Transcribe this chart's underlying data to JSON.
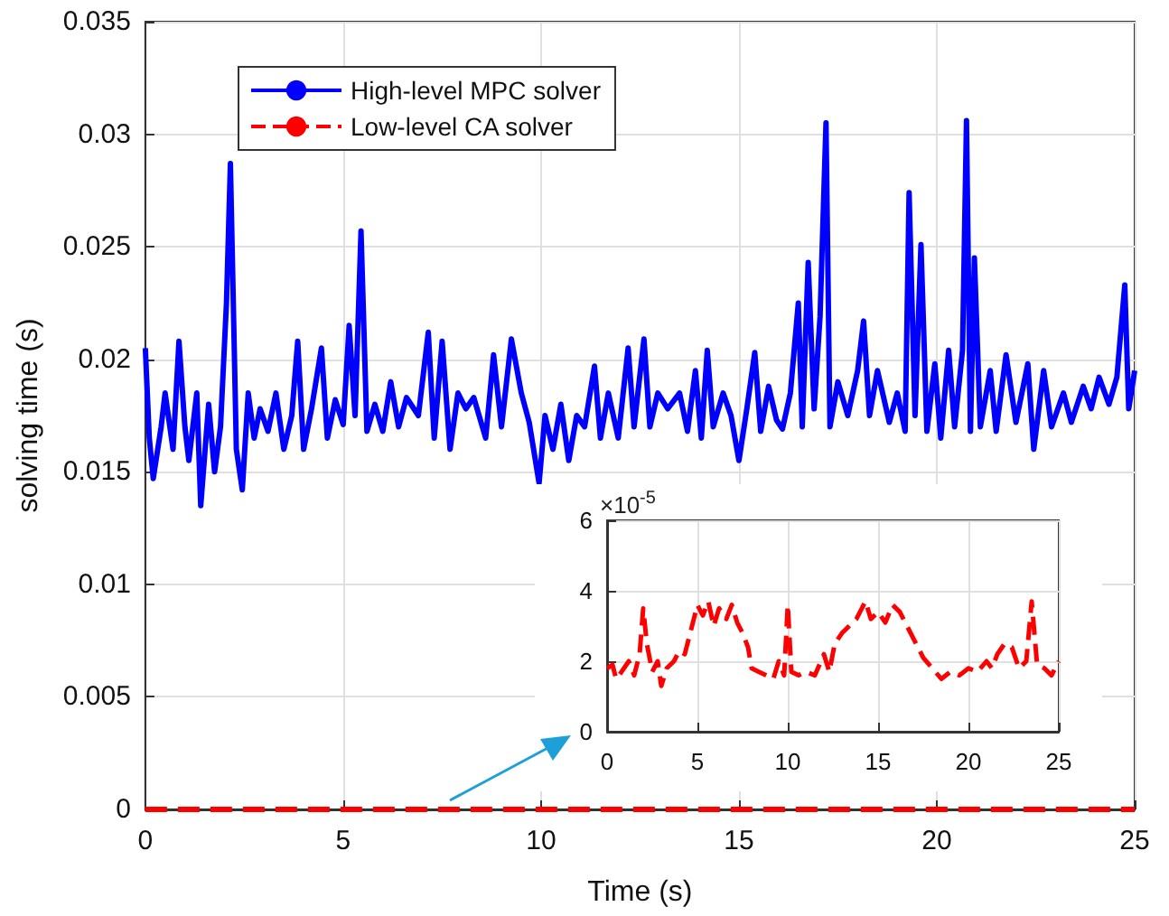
{
  "chart_data": [
    {
      "type": "line",
      "xlabel": "Time (s)",
      "ylabel": "solving time (s)",
      "xlim": [
        0,
        25
      ],
      "xticks": [
        0,
        5,
        10,
        15,
        20,
        25
      ],
      "ylim": [
        0,
        0.035
      ],
      "yticks": [
        0,
        0.005,
        0.01,
        0.015,
        0.02,
        0.025,
        0.03,
        0.035
      ],
      "grid": true,
      "legend": "top left",
      "marker": "none",
      "series": [
        {
          "name": "High-level MPC solver",
          "color": "#0000ff",
          "line_style": "solid",
          "x": [
            0,
            0.1,
            0.2,
            0.4,
            0.5,
            0.7,
            0.85,
            1.0,
            1.1,
            1.3,
            1.4,
            1.6,
            1.75,
            1.9,
            2.05,
            2.15,
            2.3,
            2.45,
            2.6,
            2.75,
            2.9,
            3.1,
            3.3,
            3.5,
            3.7,
            3.85,
            4.0,
            4.2,
            4.45,
            4.6,
            4.8,
            5.0,
            5.15,
            5.3,
            5.45,
            5.6,
            5.8,
            6.0,
            6.2,
            6.4,
            6.6,
            6.9,
            7.15,
            7.3,
            7.5,
            7.7,
            7.9,
            8.1,
            8.3,
            8.6,
            8.8,
            9.0,
            9.25,
            9.5,
            9.7,
            9.95,
            10.1,
            10.3,
            10.5,
            10.7,
            10.9,
            11.1,
            11.35,
            11.5,
            11.7,
            11.95,
            12.2,
            12.35,
            12.6,
            12.75,
            12.95,
            13.2,
            13.5,
            13.7,
            13.9,
            14.05,
            14.2,
            14.35,
            14.6,
            14.8,
            15.0,
            15.2,
            15.4,
            15.55,
            15.75,
            15.95,
            16.1,
            16.3,
            16.5,
            16.6,
            16.75,
            16.9,
            17.05,
            17.2,
            17.3,
            17.5,
            17.75,
            18.0,
            18.15,
            18.3,
            18.5,
            18.8,
            19.0,
            19.2,
            19.3,
            19.45,
            19.6,
            19.75,
            19.95,
            20.1,
            20.3,
            20.45,
            20.65,
            20.75,
            20.85,
            20.95,
            21.1,
            21.35,
            21.5,
            21.75,
            22.0,
            22.3,
            22.45,
            22.7,
            22.9,
            23.2,
            23.4,
            23.7,
            23.9,
            24.1,
            24.35,
            24.55,
            24.75,
            24.85,
            25.0
          ],
          "values": [
            0.0205,
            0.0165,
            0.0147,
            0.017,
            0.0185,
            0.016,
            0.0208,
            0.017,
            0.0155,
            0.0185,
            0.0135,
            0.018,
            0.015,
            0.017,
            0.0225,
            0.0287,
            0.016,
            0.0142,
            0.0185,
            0.0165,
            0.0178,
            0.0168,
            0.0185,
            0.016,
            0.0175,
            0.0208,
            0.016,
            0.0178,
            0.0205,
            0.0165,
            0.0182,
            0.0171,
            0.0215,
            0.0175,
            0.0257,
            0.0168,
            0.018,
            0.0168,
            0.019,
            0.017,
            0.0183,
            0.0175,
            0.0212,
            0.0165,
            0.0208,
            0.016,
            0.0185,
            0.0178,
            0.0183,
            0.0165,
            0.0202,
            0.017,
            0.0209,
            0.0185,
            0.0172,
            0.0145,
            0.0175,
            0.016,
            0.018,
            0.0155,
            0.0175,
            0.017,
            0.0197,
            0.0165,
            0.0185,
            0.0165,
            0.0205,
            0.017,
            0.0209,
            0.017,
            0.0185,
            0.0178,
            0.0185,
            0.0168,
            0.0195,
            0.0165,
            0.0204,
            0.017,
            0.0185,
            0.0175,
            0.0155,
            0.0178,
            0.0203,
            0.0168,
            0.0188,
            0.0173,
            0.0169,
            0.0185,
            0.0225,
            0.017,
            0.0243,
            0.0178,
            0.0219,
            0.0305,
            0.017,
            0.019,
            0.0175,
            0.0195,
            0.0217,
            0.0175,
            0.0195,
            0.0172,
            0.0185,
            0.0168,
            0.0274,
            0.0175,
            0.0251,
            0.0168,
            0.0198,
            0.0165,
            0.0204,
            0.017,
            0.0204,
            0.0306,
            0.0168,
            0.0245,
            0.017,
            0.0195,
            0.0168,
            0.0202,
            0.0172,
            0.0198,
            0.016,
            0.0195,
            0.017,
            0.0185,
            0.0172,
            0.0188,
            0.0178,
            0.0192,
            0.018,
            0.0192,
            0.0233,
            0.0178,
            0.0195
          ]
        },
        {
          "name": "Low-level CA solver",
          "color": "#ff0000",
          "line_style": "dashed",
          "x": [
            0,
            25
          ],
          "values": [
            0,
            0
          ]
        }
      ]
    },
    {
      "type": "line",
      "annotations": [
        "×10$^{-5}$"
      ],
      "xlim": [
        0,
        25
      ],
      "xticks": [
        0,
        5,
        10,
        15,
        20,
        25
      ],
      "ylim": [
        0,
        6
      ],
      "yticks": [
        0,
        2,
        4,
        6
      ],
      "grid": true,
      "legend": false,
      "marker": "none",
      "series": [
        {
          "color": "#ff0000",
          "line_style": "dashed",
          "x": [
            0,
            0.3,
            0.5,
            0.8,
            1.2,
            1.5,
            1.8,
            2.0,
            2.2,
            2.5,
            2.8,
            3.0,
            3.3,
            3.7,
            4.0,
            4.3,
            4.6,
            5.0,
            5.3,
            5.6,
            5.9,
            6.2,
            6.6,
            6.9,
            7.2,
            7.5,
            7.8,
            8.0,
            8.4,
            8.8,
            9.2,
            9.5,
            9.8,
            10.0,
            10.2,
            10.6,
            11.0,
            11.5,
            12.0,
            12.3,
            12.6,
            13.0,
            13.4,
            13.8,
            14.3,
            14.6,
            15.0,
            15.4,
            15.8,
            16.2,
            16.6,
            17.0,
            17.5,
            18.0,
            18.5,
            19.0,
            19.5,
            20.0,
            20.5,
            21.0,
            21.3,
            21.6,
            22.0,
            22.4,
            22.8,
            23.2,
            23.5,
            23.8,
            24.2,
            24.6,
            25.0
          ],
          "values": [
            1.8,
            1.9,
            1.5,
            1.7,
            2.0,
            1.6,
            2.2,
            3.5,
            2.5,
            1.7,
            2.0,
            1.3,
            1.8,
            2.0,
            2.3,
            2.2,
            2.8,
            3.6,
            3.3,
            3.7,
            3.0,
            3.5,
            3.2,
            3.6,
            3.1,
            2.8,
            2.4,
            1.8,
            1.7,
            1.6,
            1.5,
            2.0,
            1.6,
            3.6,
            1.7,
            1.6,
            1.7,
            1.6,
            2.2,
            1.7,
            2.5,
            2.8,
            3.0,
            3.2,
            3.7,
            3.2,
            3.4,
            3.1,
            3.6,
            3.4,
            3.0,
            2.6,
            2.1,
            1.8,
            1.5,
            1.7,
            1.6,
            1.8,
            1.7,
            2.0,
            1.8,
            2.2,
            2.5,
            2.4,
            1.8,
            2.0,
            3.7,
            1.9,
            1.8,
            1.6,
            2.0
          ]
        }
      ]
    }
  ]
}
